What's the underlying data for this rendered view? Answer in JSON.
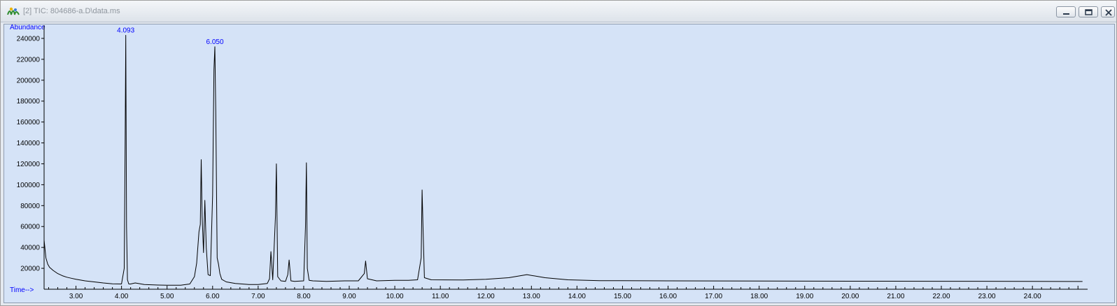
{
  "window": {
    "title": "[2] TIC: 804686-a.D\\data.ms",
    "buttons": {
      "minimize": "minimize",
      "maximize": "restore",
      "close": "close"
    }
  },
  "colors": {
    "plot_background": "#d5e3f7",
    "trace": "#000000",
    "axis_label": "#0000ff",
    "peak_label": "#0000ff",
    "baseline_marker": "#ff0000"
  },
  "chart_data": {
    "type": "line",
    "ylabel": "Abundance",
    "xlabel": "Time-->",
    "xlim": [
      2.3,
      25.15
    ],
    "ylim": [
      0,
      250000
    ],
    "grid": false,
    "yticks": [
      20000,
      40000,
      60000,
      80000,
      100000,
      120000,
      140000,
      160000,
      180000,
      200000,
      220000,
      240000
    ],
    "ytick_labels": [
      "20000",
      "40000",
      "60000",
      "80000",
      "100000",
      "120000",
      "140000",
      "160000",
      "180000",
      "200000",
      "220000",
      "240000"
    ],
    "xticks": [
      3,
      4,
      5,
      6,
      7,
      8,
      9,
      10,
      11,
      12,
      13,
      14,
      15,
      16,
      17,
      18,
      19,
      20,
      21,
      22,
      23,
      24
    ],
    "xtick_labels": [
      "3.00",
      "4.00",
      "5.00",
      "6.00",
      "7.00",
      "8.00",
      "9.00",
      "10.00",
      "11.00",
      "12.00",
      "13.00",
      "14.00",
      "15.00",
      "16.00",
      "17.00",
      "18.00",
      "19.00",
      "20.00",
      "21.00",
      "22.00",
      "23.00",
      "24.00"
    ],
    "annotations": [
      {
        "text": "4.093",
        "x": 4.093,
        "y": 243000
      },
      {
        "text": "6.050",
        "x": 6.05,
        "y": 232000
      }
    ],
    "series": [
      {
        "x": [
          2.3,
          2.34,
          2.38,
          2.42,
          2.5,
          2.6,
          2.7,
          2.8,
          2.9,
          3.0,
          3.2,
          3.4,
          3.6,
          3.8,
          4.0,
          4.06,
          4.08,
          4.093,
          4.11,
          4.13,
          4.16,
          4.2,
          4.3,
          4.5,
          4.8,
          5.0,
          5.3,
          5.5,
          5.6,
          5.65,
          5.7,
          5.73,
          5.75,
          5.77,
          5.8,
          5.83,
          5.86,
          5.9,
          5.95,
          6.0,
          6.03,
          6.05,
          6.07,
          6.1,
          6.13,
          6.16,
          6.2,
          6.3,
          6.5,
          6.8,
          7.0,
          7.2,
          7.25,
          7.28,
          7.32,
          7.38,
          7.4,
          7.43,
          7.5,
          7.6,
          7.65,
          7.68,
          7.72,
          7.8,
          8.0,
          8.04,
          8.06,
          8.08,
          8.12,
          8.2,
          8.5,
          8.9,
          9.2,
          9.33,
          9.36,
          9.4,
          9.6,
          10.0,
          10.3,
          10.5,
          10.58,
          10.6,
          10.62,
          10.65,
          10.8,
          11.5,
          12.0,
          12.5,
          12.9,
          13.3,
          13.8,
          14.5,
          16.0,
          18.0,
          20.0,
          22.0,
          24.0,
          25.1
        ],
        "y": [
          47000,
          30000,
          24000,
          21000,
          18000,
          15000,
          13000,
          11500,
          10500,
          9500,
          8000,
          7000,
          6000,
          5200,
          5000,
          20000,
          140000,
          243000,
          60000,
          9000,
          5000,
          5000,
          6000,
          4500,
          4000,
          3800,
          3800,
          5000,
          12000,
          25000,
          55000,
          62000,
          124000,
          70000,
          35000,
          85000,
          40000,
          14000,
          13000,
          90000,
          210000,
          232000,
          170000,
          30000,
          24000,
          15000,
          9500,
          7000,
          5500,
          4500,
          4500,
          5500,
          10000,
          36000,
          9000,
          70000,
          120000,
          12000,
          8000,
          7500,
          14000,
          28000,
          8000,
          7500,
          8000,
          60000,
          121000,
          20000,
          8500,
          8000,
          7500,
          8000,
          8000,
          15000,
          27000,
          10000,
          8000,
          8500,
          8500,
          9000,
          30000,
          95000,
          60000,
          11000,
          9000,
          8800,
          9500,
          11000,
          14000,
          11000,
          9000,
          8200,
          8000,
          7800,
          7700,
          7600,
          7500,
          7400
        ]
      }
    ]
  }
}
